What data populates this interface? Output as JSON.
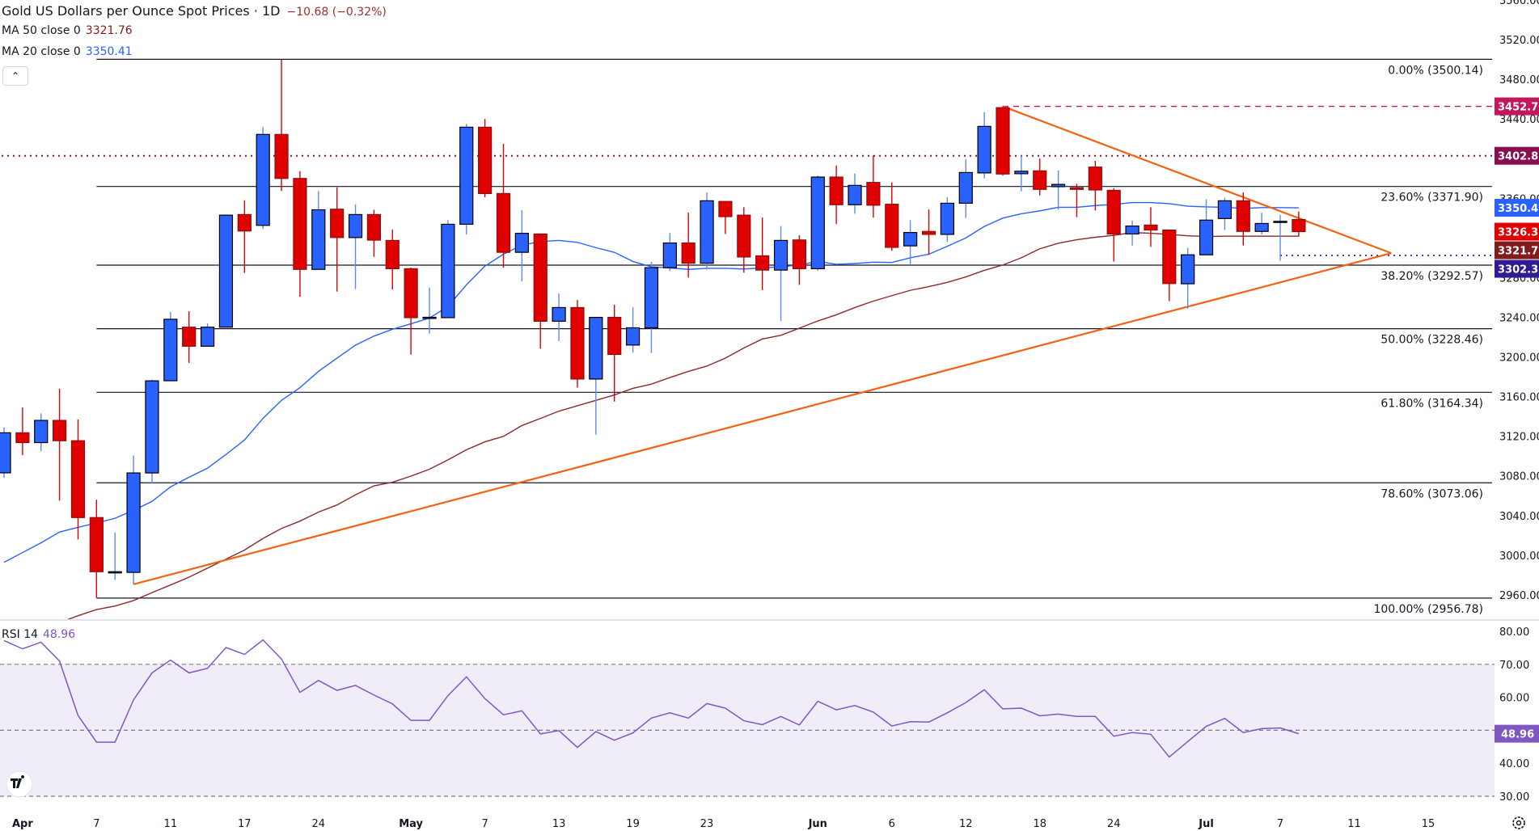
{
  "header": {
    "title": "Gold US Dollars per Ounce Spot Prices · 1D",
    "change": "−10.68 (−0.32%)",
    "ma50_label": "MA 50 close 0",
    "ma50_value": "3321.76",
    "ma20_label": "MA 20 close 0",
    "ma20_value": "3350.41",
    "collapse_icon": "chevron-up-icon",
    "collapse_glyph": "⌃"
  },
  "rsi_legend": {
    "label": "RSI 14",
    "value": "48.96"
  },
  "colors": {
    "up": "#2962ff",
    "down": "#e00000",
    "ma20": "#2962ff",
    "ma50": "#8b2a2a",
    "trendline": "#f2620f",
    "rsi": "#7e57c2",
    "rsi_band": "#f0ecf8",
    "fib": "#131722"
  },
  "chart_data": [
    {
      "type": "candlestick",
      "title": "Gold US Dollars per Ounce Spot Prices · 1D",
      "dates": [
        "Mar 31",
        "Apr 1",
        "Apr 2",
        "Apr 3",
        "Apr 4",
        "Apr 7",
        "Apr 8",
        "Apr 9",
        "Apr 10",
        "Apr 11",
        "Apr 14",
        "Apr 15",
        "Apr 16",
        "Apr 17",
        "Apr 21",
        "Apr 22",
        "Apr 23",
        "Apr 24",
        "Apr 25",
        "Apr 28",
        "Apr 29",
        "Apr 30",
        "May 1",
        "May 2",
        "May 5",
        "May 6",
        "May 7",
        "May 8",
        "May 9",
        "May 12",
        "May 13",
        "May 14",
        "May 15",
        "May 16",
        "May 19",
        "May 20",
        "May 21",
        "May 22",
        "May 23",
        "May 26",
        "May 27",
        "May 28",
        "May 29",
        "May 30",
        "Jun 2",
        "Jun 3",
        "Jun 4",
        "Jun 5",
        "Jun 6",
        "Jun 9",
        "Jun 10",
        "Jun 11",
        "Jun 12",
        "Jun 13",
        "Jun 16",
        "Jun 17",
        "Jun 18",
        "Jun 19",
        "Jun 20",
        "Jun 23",
        "Jun 24",
        "Jun 25",
        "Jun 26",
        "Jun 27",
        "Jun 30",
        "Jul 1",
        "Jul 2",
        "Jul 3",
        "Jul 4",
        "Jul 7",
        "Jul 8"
      ],
      "ohlc": [
        [
          3083.1,
          3129,
          3078,
          3123.5
        ],
        [
          3123.5,
          3149,
          3101,
          3113.6
        ],
        [
          3113.6,
          3143,
          3105,
          3136
        ],
        [
          3136,
          3168,
          3055,
          3115.5
        ],
        [
          3115.5,
          3137,
          3016,
          3038
        ],
        [
          3038,
          3056,
          2957,
          2983.4
        ],
        [
          2983.4,
          3023,
          2975,
          2983.4
        ],
        [
          2982.7,
          3100.6,
          2970.6,
          3083
        ],
        [
          3083,
          3177,
          3072.5,
          3175.9
        ],
        [
          3176,
          3245.4,
          3176,
          3238
        ],
        [
          3230,
          3246,
          3194,
          3210.8
        ],
        [
          3210.8,
          3233.8,
          3210.8,
          3230
        ],
        [
          3230,
          3343.6,
          3230,
          3343
        ],
        [
          3343.6,
          3358,
          3284.7,
          3327
        ],
        [
          3332.7,
          3431.7,
          3329,
          3424.4
        ],
        [
          3424.4,
          3500.1,
          3367.3,
          3380
        ],
        [
          3380,
          3387.3,
          3260.7,
          3288.3
        ],
        [
          3288.3,
          3367.3,
          3288.3,
          3348.4
        ],
        [
          3349,
          3371,
          3266,
          3320.4
        ],
        [
          3320.4,
          3353.8,
          3268.4,
          3343.6
        ],
        [
          3343.6,
          3348.4,
          3301,
          3317.8
        ],
        [
          3317.5,
          3328.4,
          3268,
          3289
        ],
        [
          3289,
          3290,
          3202.4,
          3239.6
        ],
        [
          3240,
          3270,
          3223.6,
          3240
        ],
        [
          3239.6,
          3338,
          3239.6,
          3333.8
        ],
        [
          3333.8,
          3435,
          3323.6,
          3431.7
        ],
        [
          3431.7,
          3440,
          3361,
          3364.8
        ],
        [
          3364.8,
          3415,
          3290,
          3305.5
        ],
        [
          3305.5,
          3348,
          3276,
          3324.7
        ],
        [
          3324,
          3324,
          3208.3,
          3236
        ],
        [
          3236,
          3264,
          3216,
          3249.8
        ],
        [
          3249.8,
          3257.4,
          3169,
          3177.7
        ],
        [
          3177.7,
          3240.5,
          3121.7,
          3239.9
        ],
        [
          3239.9,
          3252.6,
          3155,
          3202.5
        ],
        [
          3212,
          3250,
          3204.3,
          3229.4
        ],
        [
          3229.4,
          3296,
          3204,
          3290
        ],
        [
          3290,
          3325,
          3286.6,
          3314.9
        ],
        [
          3314.9,
          3345.5,
          3280,
          3294.5
        ],
        [
          3294.5,
          3366,
          3288,
          3357.5
        ],
        [
          3356.8,
          3356.8,
          3324,
          3341.5
        ],
        [
          3343,
          3351,
          3285,
          3300.8
        ],
        [
          3302,
          3340.6,
          3267.4,
          3287.6
        ],
        [
          3287.6,
          3332,
          3236.2,
          3317.5
        ],
        [
          3318,
          3322.6,
          3272.7,
          3289
        ],
        [
          3289,
          3383,
          3287,
          3381.4
        ],
        [
          3381.4,
          3393,
          3334,
          3353.5
        ],
        [
          3353.5,
          3385,
          3344.5,
          3373
        ],
        [
          3376,
          3403,
          3340.6,
          3353
        ],
        [
          3354,
          3376,
          3307,
          3310.5
        ],
        [
          3312,
          3338,
          3293.6,
          3325.5
        ],
        [
          3326.6,
          3348.7,
          3303,
          3323.6
        ],
        [
          3323.6,
          3361,
          3316,
          3355
        ],
        [
          3355,
          3399.5,
          3340,
          3386
        ],
        [
          3385.6,
          3447,
          3380,
          3432.5
        ],
        [
          3451.4,
          3452.7,
          3383,
          3384.5
        ],
        [
          3384.8,
          3403,
          3367,
          3387.3
        ],
        [
          3387.7,
          3400,
          3362.9,
          3369
        ],
        [
          3371.7,
          3388,
          3348.4,
          3374
        ],
        [
          3370.6,
          3374.5,
          3341,
          3369
        ],
        [
          3391.5,
          3397.7,
          3347.7,
          3368.4
        ],
        [
          3368,
          3370,
          3296.3,
          3324
        ],
        [
          3324,
          3337.5,
          3312.4,
          3332
        ],
        [
          3333,
          3351,
          3311,
          3328
        ],
        [
          3328,
          3328,
          3256.3,
          3274
        ],
        [
          3273.8,
          3310,
          3248.5,
          3303
        ],
        [
          3303,
          3359,
          3303,
          3338
        ],
        [
          3339.6,
          3360.6,
          3328,
          3357.5
        ],
        [
          3357.5,
          3366,
          3312.4,
          3326.6
        ],
        [
          3326.6,
          3345.5,
          3323.6,
          3334.6
        ],
        [
          3335.7,
          3343.3,
          3297,
          3336.8
        ],
        [
          3338.6,
          3346.6,
          3321.4,
          3326.4
        ]
      ],
      "ma20": [
        2992.9,
        3002.7,
        3012.5,
        3023.4,
        3028.2,
        3032.5,
        3037.3,
        3045.3,
        3054.3,
        3068.9,
        3078.7,
        3087.8,
        3101.6,
        3116.2,
        3138,
        3156.2,
        3169,
        3185.4,
        3198.8,
        3211.9,
        3221,
        3227.9,
        3233.4,
        3239.2,
        3250.9,
        3272.7,
        3291.6,
        3303.6,
        3312.7,
        3316.4,
        3317.5,
        3315.6,
        3310.2,
        3305.5,
        3296.3,
        3290.9,
        3289.8,
        3288.3,
        3289.4,
        3289.4,
        3288.7,
        3289.8,
        3290.9,
        3292.7,
        3296.4,
        3293.4,
        3294.2,
        3295.6,
        3295.3,
        3300,
        3303.6,
        3311.6,
        3320,
        3331.6,
        3340,
        3344.4,
        3347.3,
        3350.9,
        3350.9,
        3352.7,
        3353.8,
        3355.7,
        3355.7,
        3354.6,
        3352,
        3351.3,
        3350.9,
        3349.8,
        3350.6,
        3350.6,
        3350.41
      ],
      "ma50": [
        2916,
        2921.5,
        2927,
        2932,
        2939,
        2945.2,
        2948.8,
        2954.3,
        2962.3,
        2970,
        2977.9,
        2987,
        2996.1,
        3005.2,
        3016.9,
        3027,
        3034.4,
        3043.5,
        3050.7,
        3060.9,
        3070,
        3073.6,
        3079.8,
        3086.7,
        3096.2,
        3106.4,
        3114.4,
        3119.9,
        3130.8,
        3138,
        3145.3,
        3150.8,
        3156.2,
        3161.7,
        3168.3,
        3172.6,
        3179.2,
        3185.4,
        3190.8,
        3198.8,
        3209,
        3218.1,
        3221.8,
        3229,
        3236.3,
        3242.5,
        3249.8,
        3256.3,
        3261.8,
        3267.2,
        3270.9,
        3275.2,
        3280.7,
        3287.3,
        3292.7,
        3300,
        3309.1,
        3314.6,
        3318.2,
        3320.7,
        3322.6,
        3325.5,
        3324.7,
        3323.6,
        3322.2,
        3321.5,
        3321.8,
        3321.8,
        3321.8,
        3321.8,
        3321.76
      ],
      "y_ticks": [
        "3560.00",
        "3520.00",
        "3480.00",
        "3440.00",
        "3360.00",
        "3280.00",
        "3240.00",
        "3200.00",
        "3160.00",
        "3120.00",
        "3080.00",
        "3040.00",
        "3000.00",
        "2960.00"
      ],
      "x_ticks": [
        {
          "label": "Apr",
          "date": "Apr 1",
          "bold": true
        },
        {
          "label": "7",
          "date": "Apr 7"
        },
        {
          "label": "11",
          "date": "Apr 11"
        },
        {
          "label": "17",
          "date": "Apr 17"
        },
        {
          "label": "24",
          "date": "Apr 24"
        },
        {
          "label": "May",
          "date": "May 1",
          "bold": true
        },
        {
          "label": "7",
          "date": "May 7"
        },
        {
          "label": "13",
          "date": "May 13"
        },
        {
          "label": "19",
          "date": "May 19"
        },
        {
          "label": "23",
          "date": "May 23"
        },
        {
          "label": "Jun",
          "date": "Jun 2",
          "bold": true
        },
        {
          "label": "6",
          "date": "Jun 6"
        },
        {
          "label": "12",
          "date": "Jun 12"
        },
        {
          "label": "18",
          "date": "Jun 18"
        },
        {
          "label": "24",
          "date": "Jun 24"
        },
        {
          "label": "Jul",
          "date": "Jul 1",
          "bold": true
        },
        {
          "label": "7",
          "date": "Jul 7"
        },
        {
          "label": "11",
          "date": "Jul 11"
        },
        {
          "label": "15",
          "date": "Jul 15"
        }
      ],
      "fib_levels": [
        {
          "label": "0.00% (3500.14)",
          "price": 3500.14
        },
        {
          "label": "23.60% (3371.90)",
          "price": 3371.9
        },
        {
          "label": "38.20% (3292.57)",
          "price": 3292.57
        },
        {
          "label": "50.00% (3228.46)",
          "price": 3228.46
        },
        {
          "label": "61.80% (3164.34)",
          "price": 3164.34
        },
        {
          "label": "78.60% (3073.06)",
          "price": 3073.06
        },
        {
          "label": "100.00% (2956.78)",
          "price": 2956.78
        }
      ],
      "fib_start_date": "Apr 7",
      "horizontal_lines": [
        {
          "price": 3452.72,
          "style": "dashed",
          "color": "#c2185b",
          "from": "Jun 16"
        },
        {
          "price": 3402.87,
          "style": "dotted",
          "color": "#880e4f",
          "from": "Mar 31"
        },
        {
          "price": 3302.32,
          "style": "dotted",
          "color": "#3f3cbb",
          "from": "Jul 7"
        }
      ],
      "trendlines": [
        {
          "from": [
            "Jun 16",
            3452.72
          ],
          "to": [
            "Jul 13",
            3304.7
          ]
        },
        {
          "from": [
            "Apr 9",
            2970.7
          ],
          "to": [
            "Jul 13",
            3304.7
          ]
        }
      ],
      "price_badges": [
        {
          "label": "3452.72",
          "price": 3452.72,
          "color": "#c2185b"
        },
        {
          "label": "3402.87",
          "price": 3402.87,
          "color": "#880e4f"
        },
        {
          "label": "3350.41",
          "price": 3350.41,
          "color": "#2962ff"
        },
        {
          "label": "3326.37",
          "price": 3326.37,
          "color": "#e00000"
        },
        {
          "label": "3321.76",
          "price": 3321.76,
          "color": "#801c1c"
        },
        {
          "label": "3302.32",
          "price": 3302.32,
          "color": "#311b92"
        }
      ]
    },
    {
      "type": "line",
      "name": "RSI 14",
      "values": [
        77.2,
        74.7,
        76.7,
        71,
        54.5,
        46.4,
        46.4,
        59.2,
        67.4,
        71.3,
        67.4,
        68.8,
        75.1,
        73,
        77.4,
        71.6,
        61.5,
        65.1,
        62.1,
        63.6,
        60.7,
        58,
        53,
        53,
        60.5,
        66.2,
        59.6,
        54.7,
        55.9,
        48.9,
        49.9,
        44.8,
        49.6,
        47,
        49.2,
        53.7,
        55.3,
        53.7,
        58.1,
        56.7,
        52.9,
        51.7,
        54.2,
        51.6,
        58.8,
        56.2,
        57.5,
        55.5,
        51.3,
        52.6,
        52.5,
        55.3,
        58.4,
        62.3,
        56.5,
        56.7,
        54.4,
        54.9,
        54.2,
        54.2,
        48.2,
        49.3,
        48.8,
        41.9,
        46.6,
        51.2,
        53.6,
        49.3,
        50.5,
        50.7,
        48.96
      ],
      "y_ticks": [
        "80.00",
        "70.00",
        "60.00",
        "40.00",
        "30.00"
      ],
      "levels": [
        70,
        50,
        30
      ],
      "ylim": [
        30,
        80
      ],
      "badge": "48.96"
    }
  ],
  "icons": {
    "logo": "tradingview-logo-icon",
    "settings": "gear-icon"
  }
}
